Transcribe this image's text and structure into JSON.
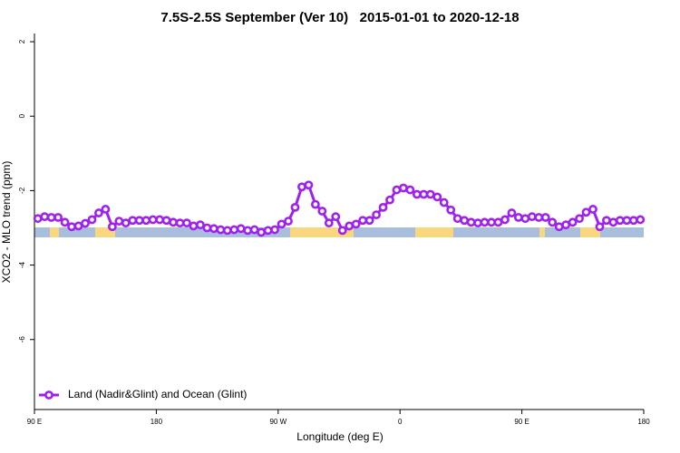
{
  "chart_data": {
    "type": "line",
    "title": "7.5S-2.5S September (Ver 10)   2015-01-01 to 2020-12-18",
    "xlabel": "Longitude (deg E)",
    "ylabel": "XCO2 - MLO trend (ppm)",
    "xlim": [
      90,
      540
    ],
    "xticks": [
      {
        "value": 90,
        "label": "90 E"
      },
      180,
      {
        "value": 270,
        "label": "90 W"
      },
      {
        "value": 360,
        "label": "0"
      },
      {
        "value": 450,
        "label": "90 E"
      },
      {
        "value": 540,
        "label": "180"
      }
    ],
    "ylim": [
      -7.88,
      2.22
    ],
    "yticks": [
      -6,
      -4,
      -2,
      0,
      2
    ],
    "legend": "bottom left",
    "x": [
      92.5,
      97.5,
      102.5,
      107.5,
      112.5,
      117.5,
      122.5,
      127.5,
      132.5,
      137.5,
      142.5,
      147.5,
      152.5,
      157.5,
      162.5,
      167.5,
      172.5,
      177.5,
      182.5,
      187.5,
      192.5,
      197.5,
      202.5,
      207.5,
      212.5,
      217.5,
      222.5,
      227.5,
      232.5,
      237.5,
      242.5,
      247.5,
      252.5,
      257.5,
      262.5,
      267.5,
      272.5,
      277.5,
      282.5,
      287.5,
      292.5,
      297.5,
      302.5,
      307.5,
      312.5,
      317.5,
      322.5,
      327.5,
      332.5,
      337.5,
      342.5,
      347.5,
      352.5,
      357.5,
      362.5,
      367.5,
      372.5,
      377.5,
      382.5,
      387.5,
      392.5,
      397.5,
      402.5,
      407.5,
      412.5,
      417.5,
      422.5,
      427.5,
      432.5,
      437.5,
      442.5,
      447.5,
      452.5,
      457.5,
      462.5,
      467.5,
      472.5,
      477.5,
      482.5,
      487.5,
      492.5,
      497.5,
      502.5,
      507.5,
      512.5,
      517.5,
      522.5,
      527.5,
      532.5,
      537.5
    ],
    "series": [
      {
        "name": "Land (Nadir&Glint) and Ocean (Glint)",
        "color": "#a020f0",
        "values": [
          -2.75,
          -2.7,
          -2.72,
          -2.72,
          -2.85,
          -2.97,
          -2.95,
          -2.88,
          -2.78,
          -2.6,
          -2.5,
          -2.97,
          -2.82,
          -2.87,
          -2.8,
          -2.8,
          -2.8,
          -2.78,
          -2.78,
          -2.8,
          -2.85,
          -2.87,
          -2.87,
          -2.95,
          -2.92,
          -3.0,
          -3.02,
          -3.05,
          -3.07,
          -3.05,
          -3.02,
          -3.07,
          -3.05,
          -3.12,
          -3.07,
          -3.05,
          -2.9,
          -2.82,
          -2.45,
          -1.9,
          -1.85,
          -2.37,
          -2.55,
          -2.87,
          -2.7,
          -3.07,
          -2.95,
          -2.9,
          -2.8,
          -2.8,
          -2.65,
          -2.45,
          -2.25,
          -1.98,
          -1.93,
          -1.98,
          -2.1,
          -2.1,
          -2.1,
          -2.17,
          -2.32,
          -2.52,
          -2.75,
          -2.8,
          -2.85,
          -2.87,
          -2.85,
          -2.85,
          -2.85,
          -2.78,
          -2.6,
          -2.72,
          -2.75,
          -2.7,
          -2.72,
          -2.72,
          -2.85,
          -2.97,
          -2.92,
          -2.85,
          -2.75,
          -2.58,
          -2.5,
          -2.97,
          -2.8,
          -2.85,
          -2.8,
          -2.8,
          -2.8,
          -2.78
        ]
      }
    ]
  }
}
